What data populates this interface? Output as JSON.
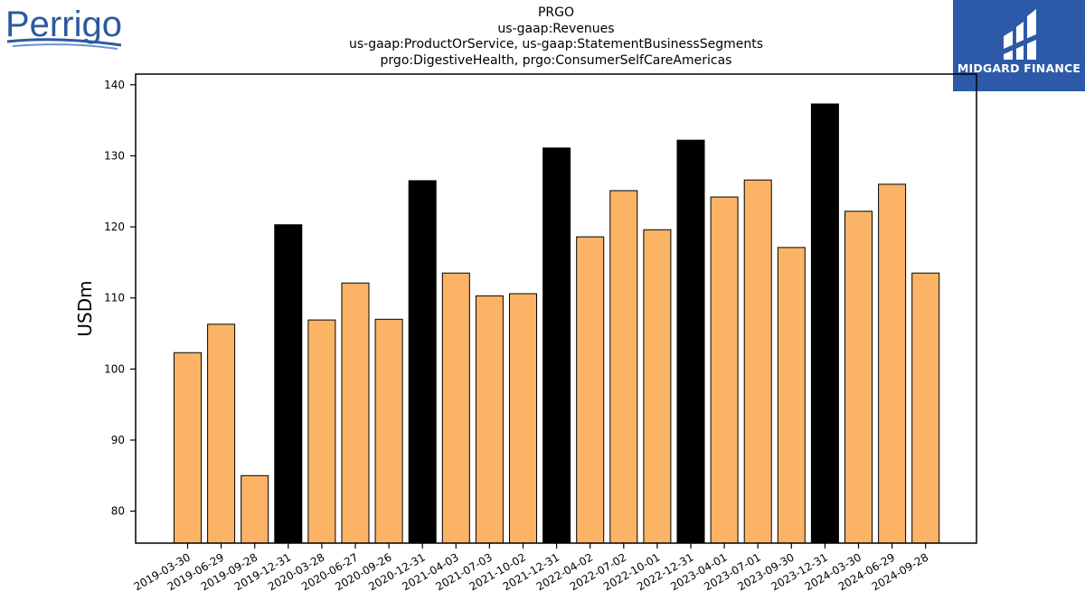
{
  "header": {
    "ticker": "PRGO",
    "concept": "us-gaap:Revenues",
    "axes": "us-gaap:ProductOrService, us-gaap:StatementBusinessSegments",
    "members": "prgo:DigestiveHealth, prgo:ConsumerSelfCareAmericas"
  },
  "logos": {
    "left_brand": "Perrigo",
    "right_brand": "MIDGARD FINANCE"
  },
  "colors": {
    "quarter_bar": "#fbb366",
    "year_end_bar": "#000000",
    "left_logo": "#2c5aa0",
    "right_logo_bg": "#2d5aa8"
  },
  "chart_data": {
    "type": "bar",
    "ylabel": "USDm",
    "ylim": [
      75.5,
      141.5
    ],
    "yticks": [
      80,
      90,
      100,
      110,
      120,
      130,
      140
    ],
    "grid": false,
    "legend": "none",
    "categories": [
      "2019-03-30",
      "2019-06-29",
      "2019-09-28",
      "2019-12-31",
      "2020-03-28",
      "2020-06-27",
      "2020-09-26",
      "2020-12-31",
      "2021-04-03",
      "2021-07-03",
      "2021-10-02",
      "2021-12-31",
      "2022-04-02",
      "2022-07-02",
      "2022-10-01",
      "2022-12-31",
      "2023-04-01",
      "2023-07-01",
      "2023-09-30",
      "2023-12-31",
      "2024-03-30",
      "2024-06-29",
      "2024-09-28"
    ],
    "values": [
      102.3,
      106.3,
      85.0,
      120.3,
      106.9,
      112.1,
      107.0,
      126.5,
      113.5,
      110.3,
      110.6,
      131.1,
      118.6,
      125.1,
      119.6,
      132.2,
      124.2,
      126.6,
      117.1,
      137.3,
      122.2,
      126.0,
      113.5
    ],
    "year_end_flags": [
      false,
      false,
      false,
      true,
      false,
      false,
      false,
      true,
      false,
      false,
      false,
      true,
      false,
      false,
      false,
      true,
      false,
      false,
      false,
      true,
      false,
      false,
      false
    ]
  }
}
